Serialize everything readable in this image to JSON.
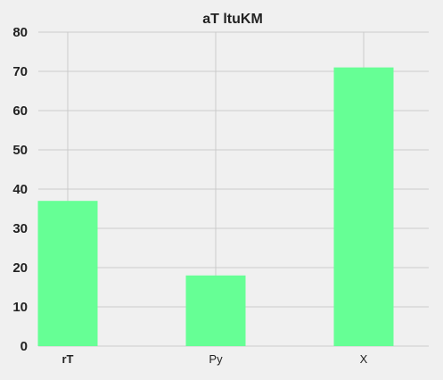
{
  "chart_data": {
    "type": "bar",
    "title": "aT ltuKM",
    "xlabel": "",
    "ylabel": "",
    "categories": [
      "rT",
      "Py",
      "X"
    ],
    "values": [
      37,
      18,
      71
    ],
    "ylim": [
      0,
      80
    ],
    "yticks": [
      "0",
      "10",
      "20",
      "30",
      "40",
      "50",
      "60",
      "70",
      "80"
    ],
    "grid": true,
    "bar_color": "#66ff95",
    "grid_color": "#cbcbcb",
    "background_color": "#f0f0f0"
  }
}
